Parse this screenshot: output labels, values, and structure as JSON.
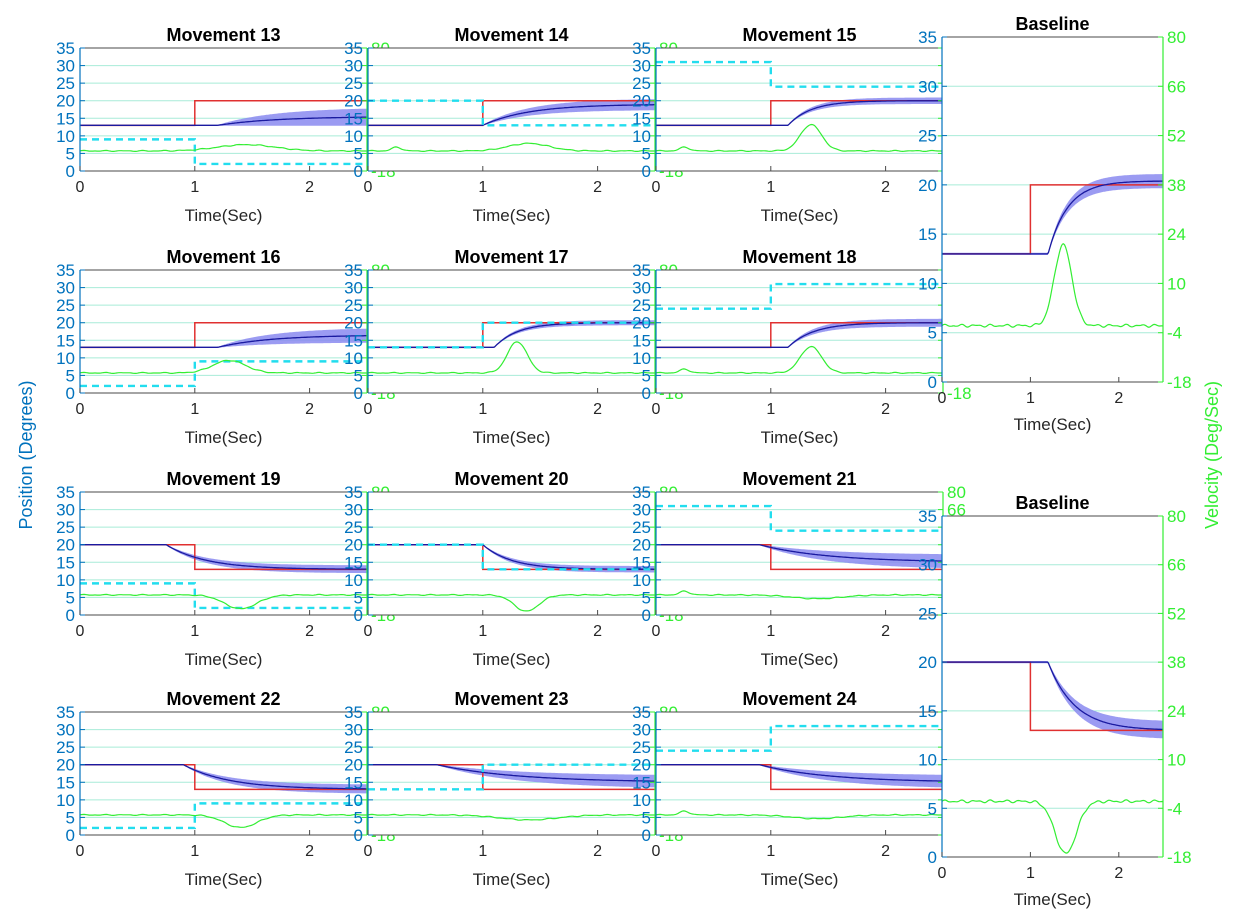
{
  "colors": {
    "position_axis": "#0072BD",
    "velocity_axis": "#33EE33",
    "target": "#E03030",
    "mean": "#1A1AA0",
    "band": "#8A8AF0",
    "velocity_line": "#33EE33",
    "perturbation": "#22DDEE",
    "grid": "#A8ECD8",
    "frame": "#4A4A4A"
  },
  "figure": {
    "left_label": "Position (Degrees)",
    "right_label": "Velocity (Deg/Sec)"
  },
  "chart_data": [
    {
      "type": "line",
      "title": "Movement 13",
      "xlabel": "Time(Sec)",
      "xlim": [
        0,
        2.5
      ],
      "xticks": [
        "0",
        "1",
        "2"
      ],
      "ylim": [
        0,
        35
      ],
      "yticks": [
        "0",
        "5",
        "10",
        "15",
        "20",
        "25",
        "30",
        "35"
      ],
      "y2lim": [
        -18,
        80
      ],
      "y2ticks": [
        "-18",
        "-4",
        "10",
        "24",
        "38",
        "52",
        "66",
        "80"
      ],
      "grid": true,
      "target": {
        "start": 13,
        "end": 20,
        "step_time": 1
      },
      "mean": {
        "start": 13,
        "end": 15.5,
        "onset": 1.2,
        "tau": 0.5
      },
      "band_halfwidth": 2.5,
      "velocity": {
        "baseline": -2,
        "peak": 3,
        "peak_time": 1.45,
        "width": 0.35,
        "bumps": []
      },
      "perturbation": {
        "before": 9,
        "after": 2,
        "step_time": 1
      }
    },
    {
      "type": "line",
      "title": "Movement 14",
      "xlabel": "Time(Sec)",
      "xlim": [
        0,
        2.5
      ],
      "xticks": [
        "0",
        "1",
        "2"
      ],
      "ylim": [
        0,
        35
      ],
      "yticks": [
        "0",
        "5",
        "10",
        "15",
        "20",
        "25",
        "30",
        "35"
      ],
      "y2lim": [
        -18,
        80
      ],
      "y2ticks": [
        "-18",
        "-4",
        "10",
        "24",
        "38",
        "52",
        "66",
        "80"
      ],
      "grid": true,
      "target": {
        "start": 13,
        "end": 20,
        "step_time": 1
      },
      "mean": {
        "start": 13,
        "end": 19,
        "onset": 1.0,
        "tau": 0.4
      },
      "band_halfwidth": 1.5,
      "velocity": {
        "baseline": -2,
        "peak": 4,
        "peak_time": 1.4,
        "width": 0.25,
        "bumps": [
          [
            0.25,
            3
          ]
        ]
      },
      "perturbation": {
        "before": 20,
        "after": 13,
        "step_time": 1
      }
    },
    {
      "type": "line",
      "title": "Movement 15",
      "xlabel": "Time(Sec)",
      "xlim": [
        0,
        2.5
      ],
      "xticks": [
        "0",
        "1",
        "2"
      ],
      "ylim": [
        0,
        35
      ],
      "yticks": [
        "0",
        "5",
        "10",
        "15",
        "20",
        "25",
        "30",
        "35"
      ],
      "y2lim": [
        -18,
        80
      ],
      "y2ticks": [
        "-18",
        "-4",
        "10",
        "24",
        "38",
        "52",
        "66",
        "80"
      ],
      "grid": true,
      "target": {
        "start": 13,
        "end": 20,
        "step_time": 1
      },
      "mean": {
        "start": 13,
        "end": 20,
        "onset": 1.15,
        "tau": 0.2
      },
      "band_halfwidth": 0.8,
      "velocity": {
        "baseline": -2,
        "peak": 19,
        "peak_time": 1.35,
        "width": 0.13,
        "bumps": [
          [
            0.25,
            3
          ]
        ]
      },
      "perturbation": {
        "before": 31,
        "after": 24,
        "step_time": 1
      }
    },
    {
      "type": "line",
      "title": "Movement 16",
      "xlabel": "Time(Sec)",
      "xlim": [
        0,
        2.5
      ],
      "xticks": [
        "0",
        "1",
        "2"
      ],
      "ylim": [
        0,
        35
      ],
      "yticks": [
        "0",
        "5",
        "10",
        "15",
        "20",
        "25",
        "30",
        "35"
      ],
      "y2lim": [
        -18,
        80
      ],
      "y2ticks": [
        "-18",
        "-4",
        "10",
        "24",
        "38",
        "52",
        "66",
        "80"
      ],
      "grid": true,
      "target": {
        "start": 13,
        "end": 20,
        "step_time": 1
      },
      "mean": {
        "start": 13,
        "end": 16.5,
        "onset": 1.2,
        "tau": 0.45
      },
      "band_halfwidth": 2.0,
      "velocity": {
        "baseline": -2,
        "peak": 8,
        "peak_time": 1.3,
        "width": 0.2,
        "bumps": []
      },
      "perturbation": {
        "before": 2,
        "after": 9,
        "step_time": 1
      }
    },
    {
      "type": "line",
      "title": "Movement 17",
      "xlabel": "Time(Sec)",
      "xlim": [
        0,
        2.5
      ],
      "xticks": [
        "0",
        "1",
        "2"
      ],
      "ylim": [
        0,
        35
      ],
      "yticks": [
        "0",
        "5",
        "10",
        "15",
        "20",
        "25",
        "30",
        "35"
      ],
      "y2lim": [
        -18,
        80
      ],
      "y2ticks": [
        "-18",
        "-4",
        "10",
        "24",
        "38",
        "52",
        "66",
        "80"
      ],
      "grid": true,
      "target": {
        "start": 13,
        "end": 20,
        "step_time": 1
      },
      "mean": {
        "start": 13,
        "end": 20,
        "onset": 1.1,
        "tau": 0.2
      },
      "band_halfwidth": 0.6,
      "velocity": {
        "baseline": -2,
        "peak": 23,
        "peak_time": 1.3,
        "width": 0.12,
        "bumps": []
      },
      "perturbation": {
        "before": 13,
        "after": 20,
        "step_time": 1
      }
    },
    {
      "type": "line",
      "title": "Movement 18",
      "xlabel": "Time(Sec)",
      "xlim": [
        0,
        2.5
      ],
      "xticks": [
        "0",
        "1",
        "2"
      ],
      "ylim": [
        0,
        35
      ],
      "yticks": [
        "0",
        "5",
        "10",
        "15",
        "20",
        "25",
        "30",
        "35"
      ],
      "y2lim": [
        -18,
        80
      ],
      "y2ticks": [
        "-18",
        "-4",
        "10",
        "24",
        "38",
        "52",
        "66",
        "80"
      ],
      "grid": true,
      "target": {
        "start": 13,
        "end": 20,
        "step_time": 1
      },
      "mean": {
        "start": 13,
        "end": 20,
        "onset": 1.15,
        "tau": 0.22
      },
      "band_halfwidth": 1.0,
      "velocity": {
        "baseline": -2,
        "peak": 19,
        "peak_time": 1.35,
        "width": 0.13,
        "bumps": [
          [
            0.25,
            3
          ]
        ]
      },
      "perturbation": {
        "before": 24,
        "after": 31,
        "step_time": 1
      }
    },
    {
      "type": "line",
      "title": "Movement 19",
      "xlabel": "Time(Sec)",
      "xlim": [
        0,
        2.5
      ],
      "xticks": [
        "0",
        "1",
        "2"
      ],
      "ylim": [
        0,
        35
      ],
      "yticks": [
        "0",
        "5",
        "10",
        "15",
        "20",
        "25",
        "30",
        "35"
      ],
      "y2lim": [
        -18,
        80
      ],
      "y2ticks": [
        "-18",
        "-4",
        "10",
        "24",
        "38",
        "52",
        "66",
        "80"
      ],
      "grid": true,
      "target": {
        "start": 20,
        "end": 13,
        "step_time": 1
      },
      "mean": {
        "start": 20,
        "end": 13,
        "onset": 0.75,
        "tau": 0.35
      },
      "band_halfwidth": 1.0,
      "velocity": {
        "baseline": -2,
        "peak": -13,
        "peak_time": 1.4,
        "width": 0.2,
        "bumps": []
      },
      "perturbation": {
        "before": 9,
        "after": 2,
        "step_time": 1
      }
    },
    {
      "type": "line",
      "title": "Movement 20",
      "xlabel": "Time(Sec)",
      "xlim": [
        0,
        2.5
      ],
      "xticks": [
        "0",
        "1",
        "2"
      ],
      "ylim": [
        0,
        35
      ],
      "yticks": [
        "0",
        "5",
        "10",
        "15",
        "20",
        "25",
        "30",
        "35"
      ],
      "y2lim": [
        -18,
        80
      ],
      "y2ticks": [
        "-18",
        "-4",
        "10",
        "24",
        "38",
        "52",
        "66",
        "80"
      ],
      "grid": true,
      "target": {
        "start": 20,
        "end": 13,
        "step_time": 1
      },
      "mean": {
        "start": 20,
        "end": 13,
        "onset": 1.0,
        "tau": 0.25
      },
      "band_halfwidth": 0.8,
      "velocity": {
        "baseline": -2,
        "peak": -15,
        "peak_time": 1.38,
        "width": 0.15,
        "bumps": []
      },
      "perturbation": {
        "before": 20,
        "after": 13,
        "step_time": 1
      }
    },
    {
      "type": "line",
      "title": "Movement 21",
      "xlabel": "Time(Sec)",
      "xlim": [
        0,
        2.5
      ],
      "xticks": [
        "0",
        "1",
        "2"
      ],
      "ylim": [
        0,
        35
      ],
      "yticks": [
        "0",
        "5",
        "10",
        "15",
        "20",
        "25",
        "30",
        "35"
      ],
      "y2lim": [
        -18,
        80
      ],
      "y2ticks": [
        "-18",
        "-4",
        "10",
        "24",
        "38",
        "52",
        "66",
        "80"
      ],
      "grid": true,
      "target": {
        "start": 20,
        "end": 13,
        "step_time": 1
      },
      "mean": {
        "start": 20,
        "end": 15,
        "onset": 0.9,
        "tau": 0.6
      },
      "band_halfwidth": 2.0,
      "velocity": {
        "baseline": -2,
        "peak": -5,
        "peak_time": 1.4,
        "width": 0.3,
        "bumps": [
          [
            0.25,
            3
          ]
        ]
      },
      "perturbation": {
        "before": 31,
        "after": 24,
        "step_time": 1
      }
    },
    {
      "type": "line",
      "title": "Movement 22",
      "xlabel": "Time(Sec)",
      "xlim": [
        0,
        2.5
      ],
      "xticks": [
        "0",
        "1",
        "2"
      ],
      "ylim": [
        0,
        35
      ],
      "yticks": [
        "0",
        "5",
        "10",
        "15",
        "20",
        "25",
        "30",
        "35"
      ],
      "y2lim": [
        -18,
        80
      ],
      "y2ticks": [
        "-18",
        "-4",
        "10",
        "24",
        "38",
        "52",
        "66",
        "80"
      ],
      "grid": true,
      "target": {
        "start": 20,
        "end": 13,
        "step_time": 1
      },
      "mean": {
        "start": 20,
        "end": 13,
        "onset": 0.9,
        "tau": 0.4
      },
      "band_halfwidth": 1.2,
      "velocity": {
        "baseline": -2,
        "peak": -12,
        "peak_time": 1.4,
        "width": 0.2,
        "bumps": []
      },
      "perturbation": {
        "before": 2,
        "after": 9,
        "step_time": 1
      }
    },
    {
      "type": "line",
      "title": "Movement 23",
      "xlabel": "Time(Sec)",
      "xlim": [
        0,
        2.5
      ],
      "xticks": [
        "0",
        "1",
        "2"
      ],
      "ylim": [
        0,
        35
      ],
      "yticks": [
        "0",
        "5",
        "10",
        "15",
        "20",
        "25",
        "30",
        "35"
      ],
      "y2lim": [
        -18,
        80
      ],
      "y2ticks": [
        "-18",
        "-4",
        "10",
        "24",
        "38",
        "52",
        "66",
        "80"
      ],
      "grid": true,
      "target": {
        "start": 20,
        "end": 13,
        "step_time": 1
      },
      "mean": {
        "start": 20,
        "end": 15,
        "onset": 0.6,
        "tau": 0.7
      },
      "band_halfwidth": 1.8,
      "velocity": {
        "baseline": -2,
        "peak": -6,
        "peak_time": 1.4,
        "width": 0.35,
        "bumps": []
      },
      "perturbation": {
        "before": 13,
        "after": 20,
        "step_time": 1
      }
    },
    {
      "type": "line",
      "title": "Movement 24",
      "xlabel": "Time(Sec)",
      "xlim": [
        0,
        2.5
      ],
      "xticks": [
        "0",
        "1",
        "2"
      ],
      "ylim": [
        0,
        35
      ],
      "yticks": [
        "0",
        "5",
        "10",
        "15",
        "20",
        "25",
        "30",
        "35"
      ],
      "y2lim": [
        -18,
        80
      ],
      "y2ticks": [
        "-18",
        "-4",
        "10",
        "24",
        "38",
        "52",
        "66",
        "80"
      ],
      "grid": true,
      "target": {
        "start": 20,
        "end": 13,
        "step_time": 1
      },
      "mean": {
        "start": 20,
        "end": 15,
        "onset": 0.9,
        "tau": 0.6
      },
      "band_halfwidth": 1.8,
      "velocity": {
        "baseline": -2,
        "peak": -5,
        "peak_time": 1.4,
        "width": 0.3,
        "bumps": [
          [
            0.25,
            3
          ]
        ]
      },
      "perturbation": {
        "before": 24,
        "after": 31,
        "step_time": 1
      }
    },
    {
      "type": "line",
      "title": "Baseline",
      "xlabel": "Time(Sec)",
      "xlim": [
        0,
        2.5
      ],
      "xticks": [
        "0",
        "1",
        "2"
      ],
      "ylim": [
        0,
        35
      ],
      "yticks": [
        "0",
        "5",
        "10",
        "15",
        "20",
        "25",
        "30",
        "35"
      ],
      "y2lim": [
        -18,
        80
      ],
      "y2ticks": [
        "-18",
        "-4",
        "10",
        "24",
        "38",
        "52",
        "66",
        "80"
      ],
      "grid": true,
      "target": {
        "start": 13,
        "end": 20,
        "step_time": 1
      },
      "mean": {
        "start": 13,
        "end": 20.4,
        "onset": 1.2,
        "tau": 0.22
      },
      "band_halfwidth": 0.6,
      "velocity": {
        "baseline": -2,
        "peak": 21,
        "peak_time": 1.37,
        "width": 0.14,
        "bumps": []
      },
      "perturbation": null
    },
    {
      "type": "line",
      "title": "Baseline",
      "xlabel": "Time(Sec)",
      "xlim": [
        0,
        2.5
      ],
      "xticks": [
        "0",
        "1",
        "2"
      ],
      "ylim": [
        0,
        35
      ],
      "yticks": [
        "0",
        "5",
        "10",
        "15",
        "20",
        "25",
        "30",
        "35"
      ],
      "y2lim": [
        -18,
        80
      ],
      "y2ticks": [
        "-18",
        "-4",
        "10",
        "24",
        "38",
        "52",
        "66",
        "80"
      ],
      "grid": true,
      "target": {
        "start": 20,
        "end": 13,
        "step_time": 1
      },
      "mean": {
        "start": 20,
        "end": 13,
        "onset": 1.2,
        "tau": 0.3
      },
      "band_halfwidth": 0.8,
      "velocity": {
        "baseline": -2,
        "peak": -17,
        "peak_time": 1.4,
        "width": 0.17,
        "bumps": []
      },
      "perturbation": null
    }
  ]
}
